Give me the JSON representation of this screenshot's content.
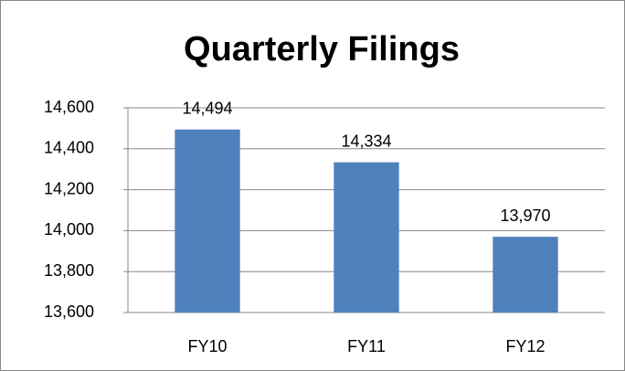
{
  "chart_data": {
    "type": "bar",
    "title": "Quarterly Filings",
    "categories": [
      "FY10",
      "FY11",
      "FY12"
    ],
    "values": [
      14494,
      14334,
      13970
    ],
    "value_labels": [
      "14,494",
      "14,334",
      "13,970"
    ],
    "color": "#4f81bd",
    "ylim": [
      13600,
      14600
    ],
    "yticks": [
      {
        "value": 13600,
        "label": "13,600"
      },
      {
        "value": 13800,
        "label": "13,800"
      },
      {
        "value": 14000,
        "label": "14,000"
      },
      {
        "value": 14200,
        "label": "14,200"
      },
      {
        "value": 14400,
        "label": "14,400"
      },
      {
        "value": 14600,
        "label": "14,600"
      }
    ],
    "grid": true
  }
}
